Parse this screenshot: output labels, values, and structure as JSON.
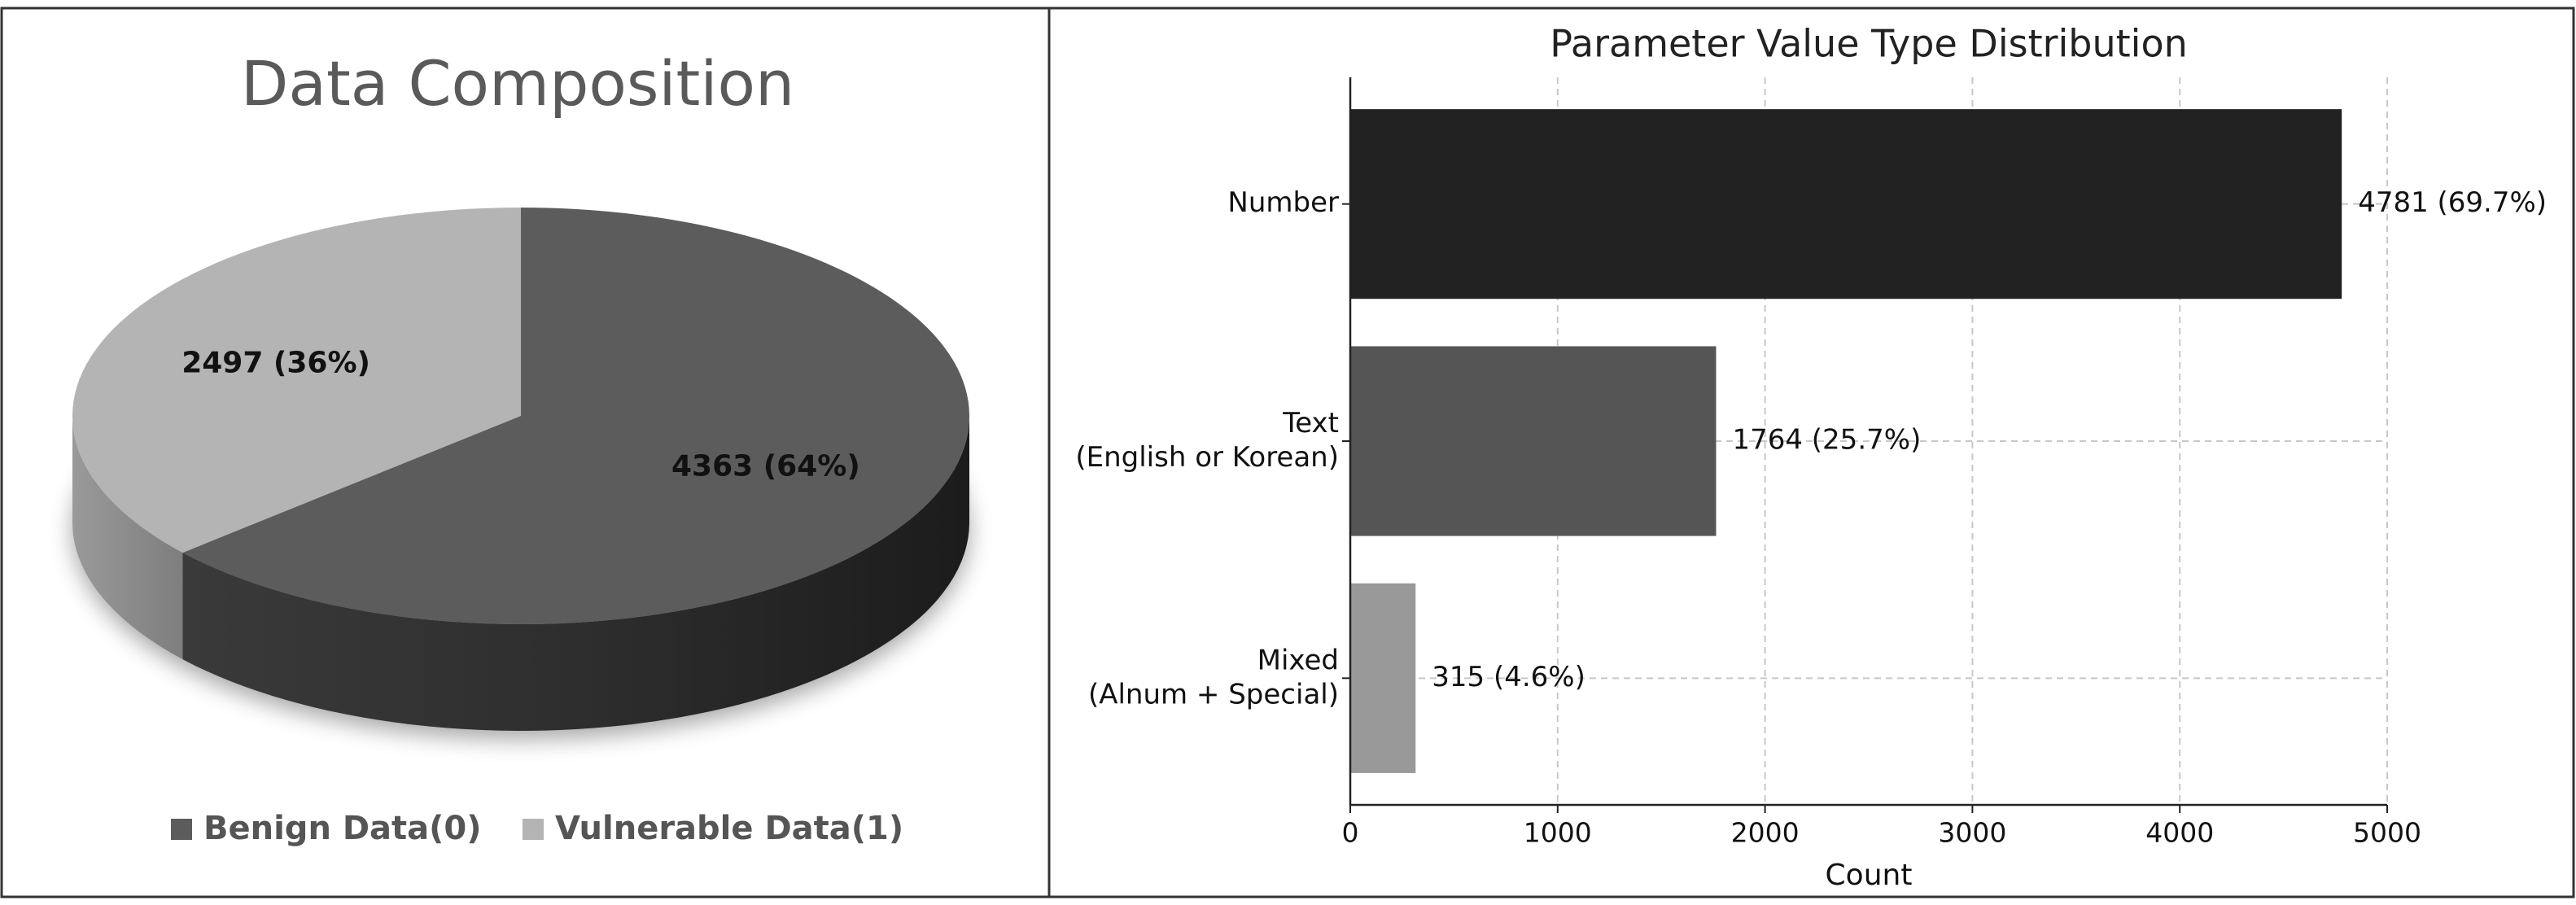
{
  "chart_data": [
    {
      "type": "pie",
      "title": "Data Composition",
      "categories": [
        "Benign Data(0)",
        "Vulnerable Data(1)"
      ],
      "values": [
        4363,
        2497
      ],
      "value_labels": [
        "4363 (64%)",
        "2497 (36%)"
      ],
      "colors": [
        "#5c5c5c",
        "#b4b4b4"
      ],
      "legend": "bottom"
    },
    {
      "type": "barh",
      "title": "Parameter Value Type Distribution",
      "categories": [
        "Number",
        "Text\n(English or Korean)",
        "Mixed\n(Alnum + Special)"
      ],
      "values": [
        4781,
        1764,
        315
      ],
      "value_labels": [
        "4781 (69.7%)",
        "1764 (25.7%)",
        "315 (4.6%)"
      ],
      "colors": [
        "#222222",
        "#555555",
        "#999999"
      ],
      "xlabel": "Count",
      "xlim": [
        0,
        5000
      ],
      "xticks": [
        0,
        1000,
        2000,
        3000,
        4000,
        5000
      ],
      "grid": true
    }
  ]
}
